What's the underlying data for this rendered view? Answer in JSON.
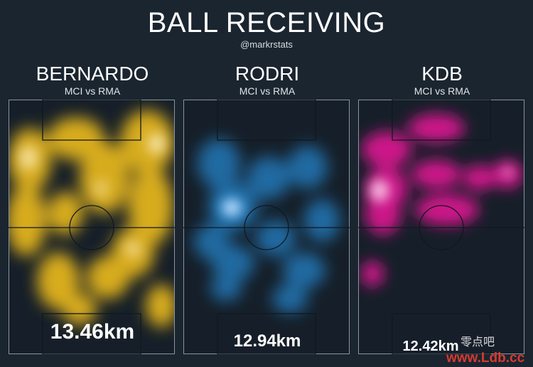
{
  "title": "BALL RECEIVING",
  "handle": "@markrstats",
  "players": [
    {
      "name": "BERNARDO",
      "match": "MCI vs RMA",
      "distance": "13.46km",
      "color": "#f2c21f"
    },
    {
      "name": "RODRI",
      "match": "MCI vs RMA",
      "distance": "12.94km",
      "color": "#2f93d8"
    },
    {
      "name": "KDB",
      "match": "MCI vs RMA",
      "distance": "12.42km",
      "color": "#e81ea0"
    }
  ],
  "watermark": {
    "top": "零点吧",
    "bottom": "www.Ldb.cc"
  }
}
